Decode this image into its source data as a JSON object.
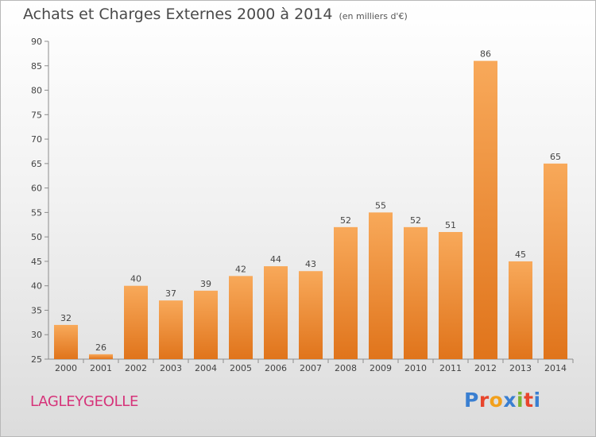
{
  "header": {
    "title": "Achats et Charges Externes 2000 à 2014",
    "subtitle": "(en milliers d'€)"
  },
  "footer": {
    "commune": "LAGLEYGEOLLE",
    "logo_text": "Proxiti",
    "logo_colors": [
      "#3a7fd1",
      "#e8452c",
      "#f2a01c",
      "#3a7fd1",
      "#7bb532",
      "#e8452c",
      "#3a7fd1"
    ]
  },
  "colors": {
    "bar_top": "#f8a95a",
    "bar_bottom": "#e0741b",
    "title": "#4a4a4a",
    "commune": "#d6347a"
  },
  "chart_data": {
    "type": "bar",
    "title": "Achats et Charges Externes 2000 à 2014",
    "subtitle": "(en milliers d'€)",
    "categories": [
      "2000",
      "2001",
      "2002",
      "2003",
      "2004",
      "2005",
      "2006",
      "2007",
      "2008",
      "2009",
      "2010",
      "2011",
      "2012",
      "2013",
      "2014"
    ],
    "values": [
      32,
      26,
      40,
      37,
      39,
      42,
      44,
      43,
      52,
      55,
      52,
      51,
      86,
      45,
      65
    ],
    "ylim": [
      25,
      90
    ],
    "yticks": [
      25,
      30,
      35,
      40,
      45,
      50,
      55,
      60,
      65,
      70,
      75,
      80,
      85,
      90
    ],
    "grid": false,
    "data_labels": true
  }
}
